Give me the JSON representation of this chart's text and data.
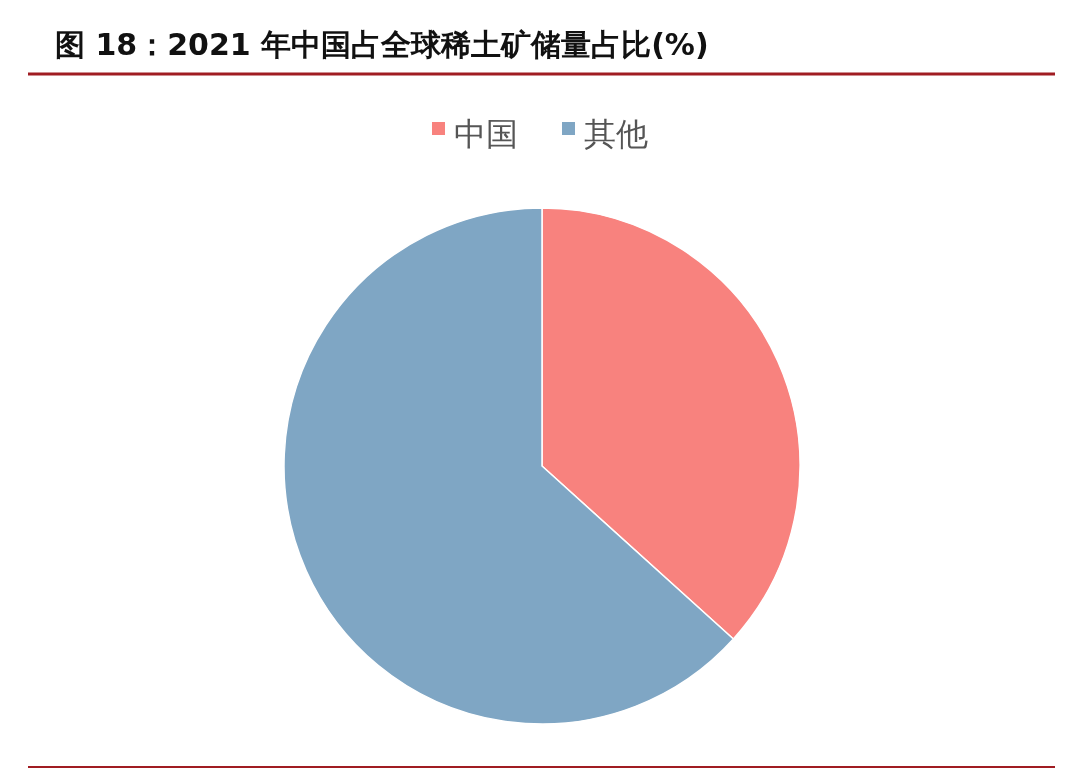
{
  "chart_data": {
    "type": "pie",
    "title": "图 18：2021 年中国占全球稀土矿储量占比(%)",
    "categories": [
      "中国",
      "其他"
    ],
    "values": [
      36.7,
      63.3
    ],
    "colors": [
      "#f8827e",
      "#7fa6c4"
    ],
    "legend": "top"
  }
}
